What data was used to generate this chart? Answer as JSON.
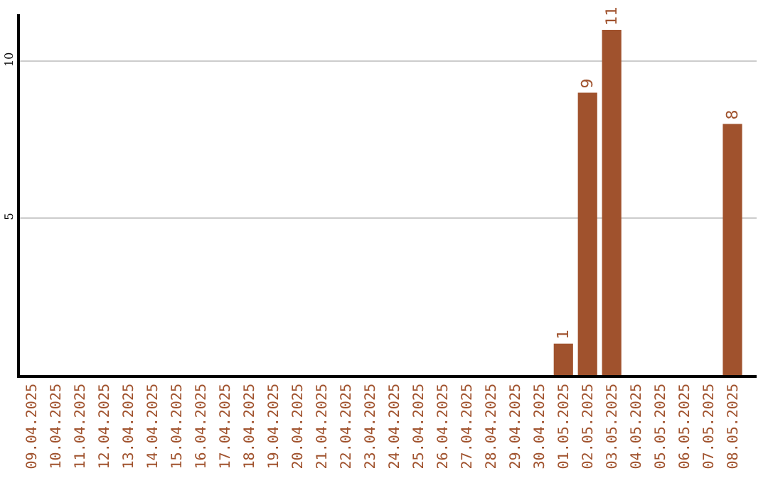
{
  "chart_data": {
    "type": "bar",
    "categories": [
      "09.04.2025",
      "10.04.2025",
      "11.04.2025",
      "12.04.2025",
      "13.04.2025",
      "14.04.2025",
      "15.04.2025",
      "16.04.2025",
      "17.04.2025",
      "18.04.2025",
      "19.04.2025",
      "20.04.2025",
      "21.04.2025",
      "22.04.2025",
      "23.04.2025",
      "24.04.2025",
      "25.04.2025",
      "26.04.2025",
      "27.04.2025",
      "28.04.2025",
      "29.04.2025",
      "30.04.2025",
      "01.05.2025",
      "02.05.2025",
      "03.05.2025",
      "04.05.2025",
      "05.05.2025",
      "06.05.2025",
      "07.05.2025",
      "08.05.2025"
    ],
    "values": [
      0,
      0,
      0,
      0,
      0,
      0,
      0,
      0,
      0,
      0,
      0,
      0,
      0,
      0,
      0,
      0,
      0,
      0,
      0,
      0,
      0,
      0,
      1,
      9,
      11,
      0,
      0,
      0,
      0,
      8
    ],
    "value_labels": [
      null,
      null,
      null,
      null,
      null,
      null,
      null,
      null,
      null,
      null,
      null,
      null,
      null,
      null,
      null,
      null,
      null,
      null,
      null,
      null,
      null,
      null,
      "1",
      "9",
      "11",
      null,
      null,
      null,
      null,
      "8"
    ],
    "color": "#a0522d",
    "ylim": [
      0,
      11.5
    ],
    "yticks": [
      5,
      10
    ],
    "grid": "y",
    "legend": false
  }
}
